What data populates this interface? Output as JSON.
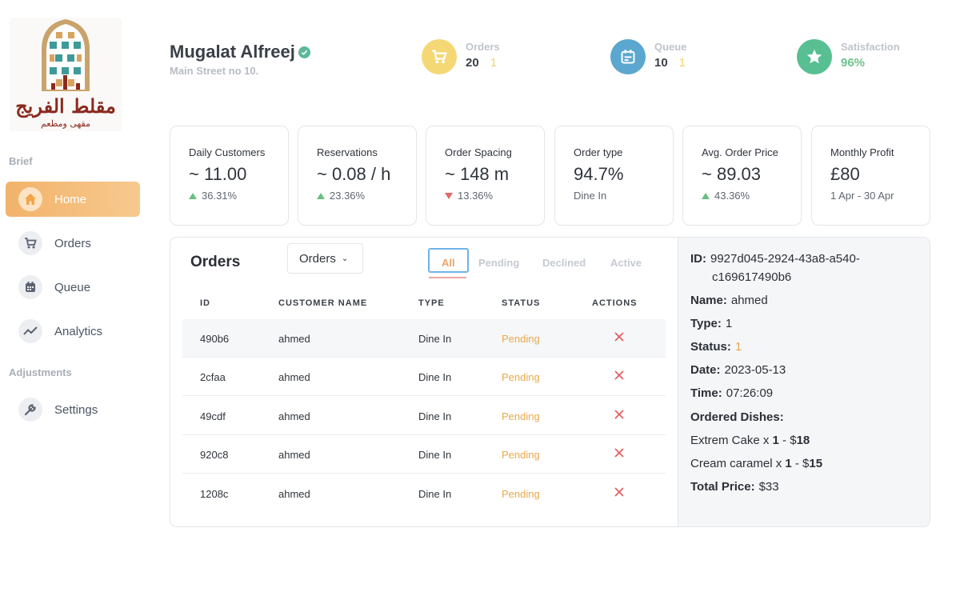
{
  "sidebar": {
    "logo_text": "مقلط الفريج",
    "logo_subtext": "مقهى ومطعم",
    "sections": [
      {
        "label": "Brief",
        "items": [
          {
            "label": "Home",
            "icon": "home-icon",
            "active": true
          },
          {
            "label": "Orders",
            "icon": "cart-icon",
            "active": false
          },
          {
            "label": "Queue",
            "icon": "calendar-icon",
            "active": false
          },
          {
            "label": "Analytics",
            "icon": "trend-icon",
            "active": false
          }
        ]
      },
      {
        "label": "Adjustments",
        "items": [
          {
            "label": "Settings",
            "icon": "wrench-icon",
            "active": false
          }
        ]
      }
    ]
  },
  "header": {
    "name": "Mugalat Alfreej",
    "address": "Main Street no 10.",
    "stats": [
      {
        "label": "Orders",
        "value": "20",
        "extra": "1",
        "icon": "cart-icon",
        "color": "#f5d876"
      },
      {
        "label": "Queue",
        "value": "10",
        "extra": "1",
        "icon": "calendar-icon",
        "color": "#5ba7cf"
      },
      {
        "label": "Satisfaction",
        "value": "96%",
        "extra": "",
        "icon": "star-icon",
        "color": "#58bf92"
      }
    ]
  },
  "kpis": [
    {
      "label": "Daily Customers",
      "value": "~ 11.00",
      "sub": "36.31%",
      "trend": "up"
    },
    {
      "label": "Reservations",
      "value": "~ 0.08 / h",
      "sub": "23.36%",
      "trend": "up"
    },
    {
      "label": "Order Spacing",
      "value": "~ 148 m",
      "sub": "13.36%",
      "trend": "down"
    },
    {
      "label": "Order type",
      "value": "94.7%",
      "sub": "Dine In",
      "trend": "none"
    },
    {
      "label": "Avg. Order Price",
      "value": "~ 89.03",
      "sub": "43.36%",
      "trend": "up"
    },
    {
      "label": "Monthly Profit",
      "value": "£80",
      "sub": "1 Apr - 30 Apr",
      "trend": "none"
    }
  ],
  "orders": {
    "title": "Orders",
    "dropdown_value": "Orders",
    "tabs": [
      "All",
      "Pending",
      "Declined",
      "Active"
    ],
    "active_tab": "All",
    "columns": [
      "ID",
      "CUSTOMER NAME",
      "TYPE",
      "STATUS",
      "ACTIONS"
    ],
    "rows": [
      {
        "id": "490b6",
        "customer": "ahmed",
        "type": "Dine In",
        "status": "Pending"
      },
      {
        "id": "2cfaa",
        "customer": "ahmed",
        "type": "Dine In",
        "status": "Pending"
      },
      {
        "id": "49cdf",
        "customer": "ahmed",
        "type": "Dine In",
        "status": "Pending"
      },
      {
        "id": "920c8",
        "customer": "ahmed",
        "type": "Dine In",
        "status": "Pending"
      },
      {
        "id": "1208c",
        "customer": "ahmed",
        "type": "Dine In",
        "status": "Pending"
      }
    ]
  },
  "detail": {
    "id_label": "ID:",
    "id_line1": "9927d045-2924-43a8-a540-",
    "id_line2": "c169617490b6",
    "name_label": "Name:",
    "name": "ahmed",
    "type_label": "Type:",
    "type": "1",
    "status_label": "Status:",
    "status": "1",
    "date_label": "Date:",
    "date": "2023-05-13",
    "time_label": "Time:",
    "time": "07:26:09",
    "dishes_label": "Ordered Dishes:",
    "dishes": [
      {
        "name": "Extrem Cake x",
        "qty": "1",
        "price_prefix": " - $",
        "price": "18"
      },
      {
        "name": "Cream caramel x",
        "qty": "1",
        "price_prefix": " - $",
        "price": "15"
      }
    ],
    "total_label": "Total Price:",
    "total": "$33"
  },
  "colors": {
    "accent": "#f2b36a",
    "pending": "#e8a94a",
    "decline": "#e25b5b",
    "up": "#69bf83",
    "down": "#e16a6a"
  }
}
